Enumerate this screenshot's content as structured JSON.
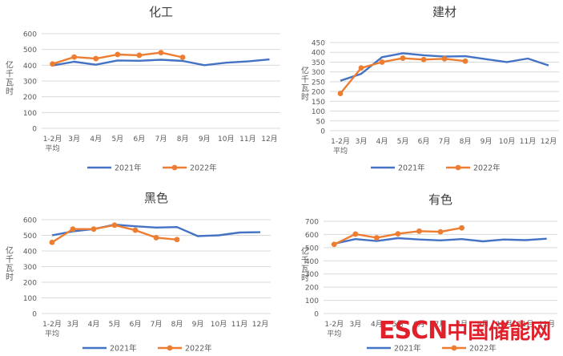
{
  "page": {
    "watermark": {
      "en": "ESCN",
      "cn": "中国储能网"
    }
  },
  "colors": {
    "s2021": "#4472c4",
    "s2022": "#ed7d31",
    "grid": "#d9d9d9",
    "text": "#595959",
    "title": "#404040"
  },
  "chart_data": [
    {
      "type": "line",
      "title": "化工",
      "ylabel": "亿千瓦时",
      "ylim": [
        0,
        600
      ],
      "yticks": [
        0,
        100,
        200,
        300,
        400,
        500,
        600
      ],
      "categories": [
        "1-2月\n平均",
        "3月",
        "4月",
        "5月",
        "6月",
        "7月",
        "8月",
        "9月",
        "10月",
        "11月",
        "12月"
      ],
      "grid": true,
      "legend": "bottom",
      "series": [
        {
          "name": "2021年",
          "values": [
            398,
            422,
            403,
            430,
            428,
            435,
            427,
            400,
            416,
            424,
            437
          ]
        },
        {
          "name": "2022年",
          "values": [
            408,
            452,
            442,
            468,
            463,
            480,
            450,
            null,
            null,
            null,
            null
          ]
        }
      ]
    },
    {
      "type": "line",
      "title": "建材",
      "ylabel": "亿千瓦时",
      "ylim": [
        0,
        450
      ],
      "yticks": [
        0,
        50,
        100,
        150,
        200,
        250,
        300,
        350,
        400,
        450
      ],
      "categories": [
        "1-2月\n平均",
        "3月",
        "4月",
        "5月",
        "6月",
        "7月",
        "8月",
        "9月",
        "10月",
        "11月",
        "12月"
      ],
      "grid": true,
      "legend": "bottom",
      "series": [
        {
          "name": "2021年",
          "values": [
            255,
            290,
            375,
            395,
            385,
            378,
            380,
            365,
            350,
            368,
            333
          ]
        },
        {
          "name": "2022年",
          "values": [
            190,
            320,
            350,
            370,
            363,
            367,
            355,
            null,
            null,
            null,
            null
          ]
        }
      ]
    },
    {
      "type": "line",
      "title": "黑色",
      "ylabel": "亿千瓦时",
      "ylim": [
        0,
        600
      ],
      "yticks": [
        0,
        100,
        200,
        300,
        400,
        500,
        600
      ],
      "categories": [
        "1-2月\n平均",
        "3月",
        "4月",
        "5月",
        "6月",
        "7月",
        "8月",
        "9月",
        "10月",
        "11月",
        "12月"
      ],
      "grid": true,
      "legend": "bottom",
      "series": [
        {
          "name": "2021年",
          "values": [
            500,
            525,
            540,
            568,
            558,
            550,
            553,
            495,
            500,
            518,
            520
          ]
        },
        {
          "name": "2022年",
          "values": [
            455,
            540,
            540,
            565,
            533,
            485,
            473,
            null,
            null,
            null,
            null
          ]
        }
      ]
    },
    {
      "type": "line",
      "title": "有色",
      "ylabel": "亿千瓦时",
      "ylim": [
        0,
        700
      ],
      "yticks": [
        0,
        100,
        200,
        300,
        400,
        500,
        600,
        700
      ],
      "categories": [
        "1-2月\n平均",
        "3月",
        "4月",
        "5月",
        "6月",
        "7月",
        "8月",
        "9月",
        "10月",
        "11月",
        "12月"
      ],
      "grid": true,
      "legend": "bottom",
      "series": [
        {
          "name": "2021年",
          "values": [
            530,
            565,
            550,
            572,
            562,
            555,
            565,
            548,
            562,
            557,
            568
          ]
        },
        {
          "name": "2022年",
          "values": [
            525,
            603,
            575,
            605,
            625,
            620,
            650,
            null,
            null,
            null,
            null
          ]
        }
      ]
    }
  ]
}
